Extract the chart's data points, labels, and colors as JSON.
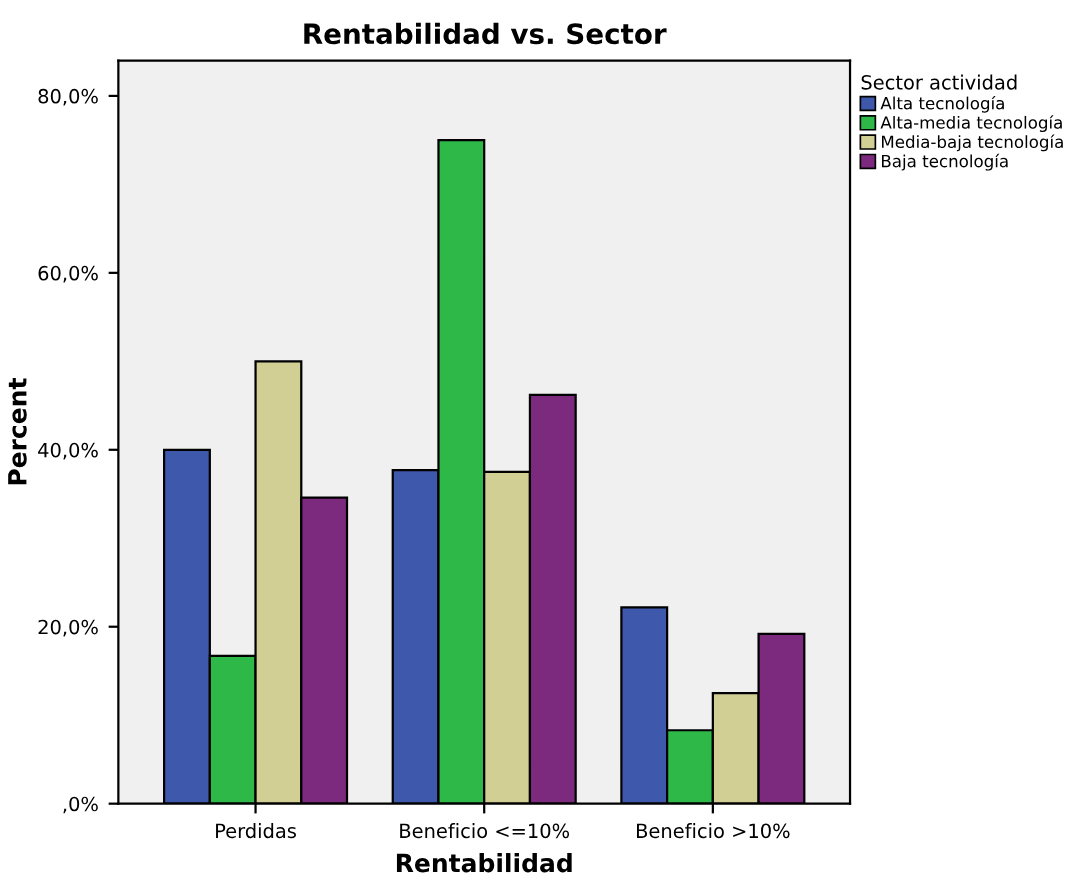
{
  "chart_data": {
    "type": "bar",
    "title": "Rentabilidad vs. Sector",
    "xlabel": "Rentabilidad",
    "ylabel": "Percent",
    "legend_title": "Sector actividad",
    "categories": [
      "Perdidas",
      "Beneficio <=10%",
      "Beneficio >10%"
    ],
    "series": [
      {
        "name": "Alta tecnología",
        "color": "#3e58ac",
        "values": [
          40.0,
          37.7,
          22.2
        ]
      },
      {
        "name": "Alta-media tecnología",
        "color": "#2eb848",
        "values": [
          16.7,
          75.0,
          8.3
        ]
      },
      {
        "name": "Media-baja tecnología",
        "color": "#d2cf95",
        "values": [
          50.0,
          37.5,
          12.5
        ]
      },
      {
        "name": "Baja tecnología",
        "color": "#7c2a7d",
        "values": [
          34.6,
          46.2,
          19.2
        ]
      }
    ],
    "ylim": [
      0,
      84
    ],
    "yticks": [
      {
        "value": 0,
        "label": ",0%"
      },
      {
        "value": 20,
        "label": "20,0%"
      },
      {
        "value": 40,
        "label": "40,0%"
      },
      {
        "value": 60,
        "label": "60,0%"
      },
      {
        "value": 80,
        "label": "80,0%"
      }
    ],
    "grid": false,
    "legend": "right"
  }
}
